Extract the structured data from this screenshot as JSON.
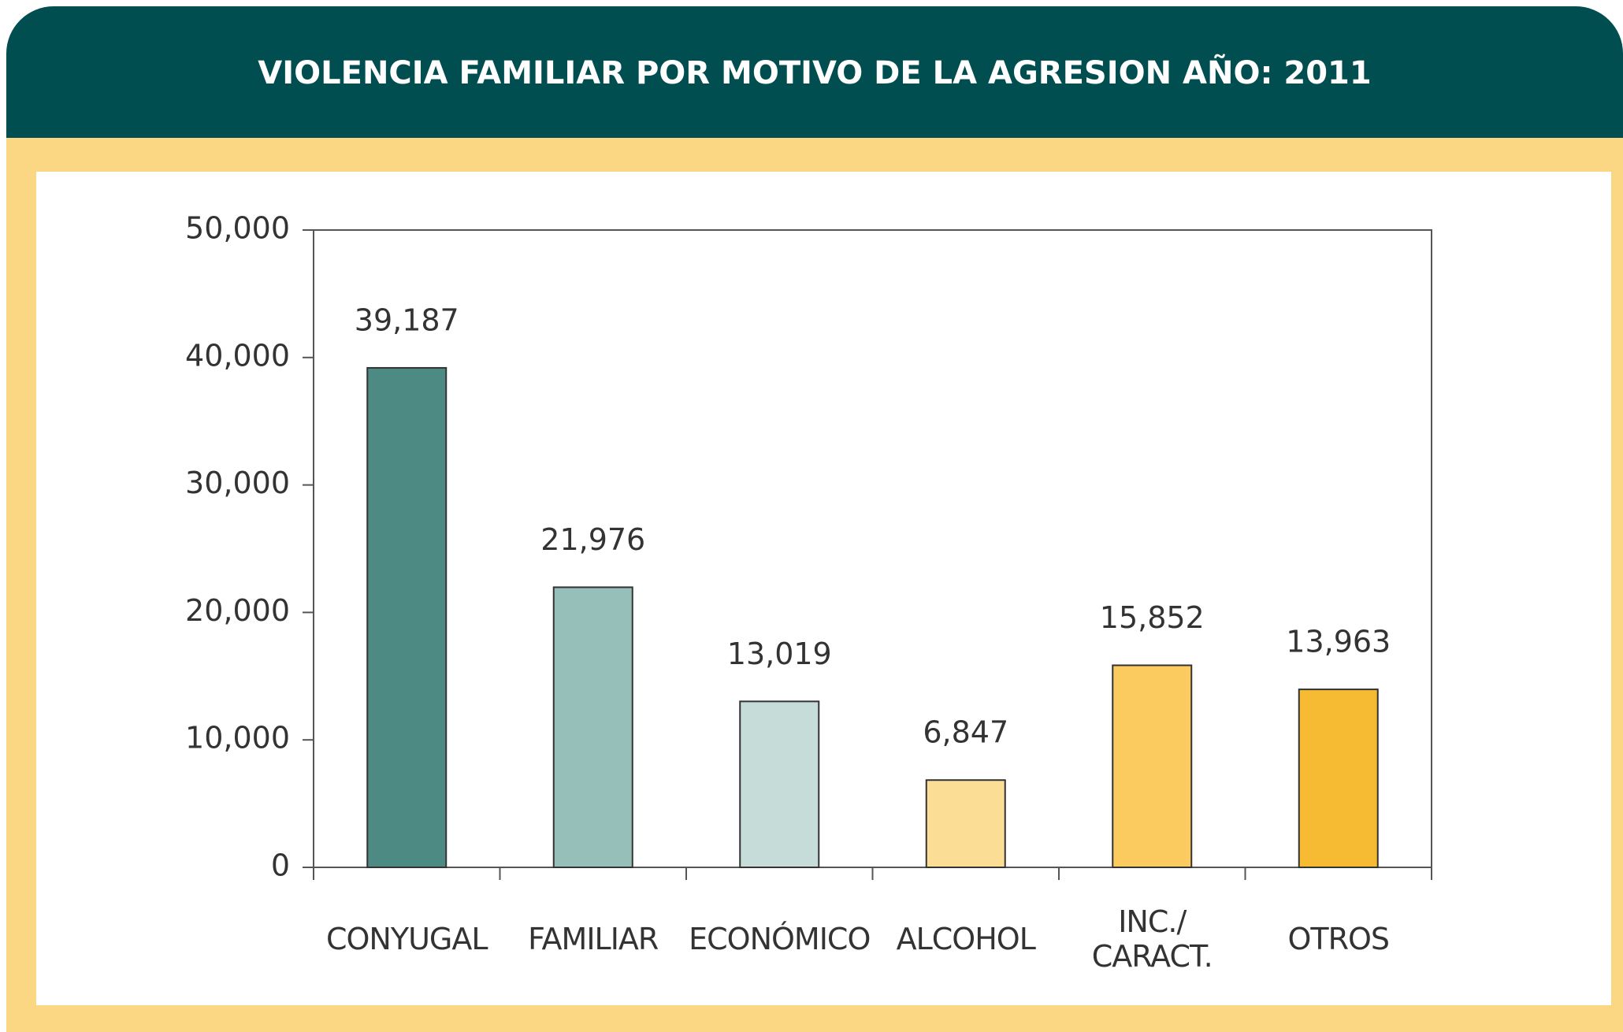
{
  "chart_data": {
    "type": "bar",
    "title": "VIOLENCIA FAMILIAR POR MOTIVO DE LA AGRESION AÑO: 2011",
    "categories": [
      "CONYUGAL",
      "FAMILIAR",
      "ECONÓMICO",
      "ALCOHOL",
      "INC./\nCARACT.",
      "OTROS"
    ],
    "values": [
      39187,
      21976,
      13019,
      6847,
      15852,
      13963
    ],
    "value_labels": [
      "39,187",
      "21,976",
      "13,019",
      "6,847",
      "15,852",
      "13,963"
    ],
    "colors": [
      "#4e8a84",
      "#97bfba",
      "#c5dcd9",
      "#fbdd96",
      "#fbcb5f",
      "#f6bb33"
    ],
    "ylim": [
      0,
      50000
    ],
    "yticks": [
      0,
      {
        "value": 10000,
        "label": "10,000"
      },
      {
        "value": 20000,
        "label": "20,000"
      },
      {
        "value": 30000,
        "label": "30,000"
      },
      {
        "value": 40000,
        "label": "40,000"
      },
      {
        "value": 50000,
        "label": "50,000"
      }
    ]
  }
}
